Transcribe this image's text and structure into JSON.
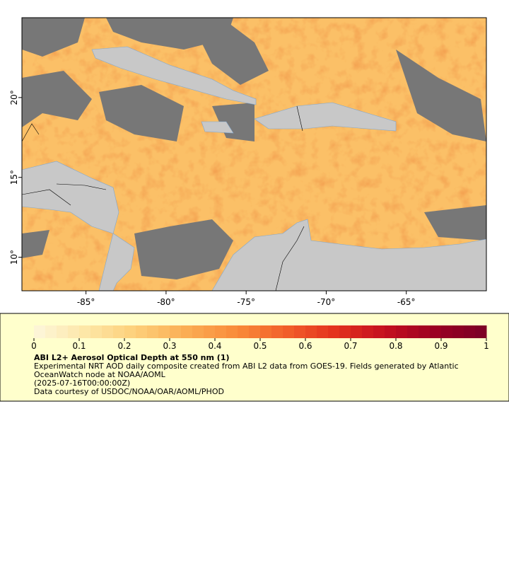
{
  "map": {
    "xlim": [
      -89,
      -60
    ],
    "ylim": [
      7.9,
      25
    ],
    "xticks": [
      {
        "value": -85,
        "label": "-85°"
      },
      {
        "value": -80,
        "label": "-80°"
      },
      {
        "value": -75,
        "label": "-75°"
      },
      {
        "value": -70,
        "label": "-70°"
      },
      {
        "value": -65,
        "label": "-65°"
      }
    ],
    "yticks": [
      {
        "value": 10,
        "label": "10°"
      },
      {
        "value": 15,
        "label": "15°"
      },
      {
        "value": 20,
        "label": "20°"
      }
    ]
  },
  "colorbar": {
    "lim": [
      0,
      1
    ],
    "ticks": [
      0,
      0.1,
      0.2,
      0.3,
      0.4,
      0.5,
      0.6,
      0.7,
      0.8,
      0.9,
      1
    ],
    "colors": [
      "#fdf7dc",
      "#fde7a8",
      "#fdd07a",
      "#fbae55",
      "#f98c3a",
      "#f2602a",
      "#e3311e",
      "#c40f1f",
      "#9a0023",
      "#7a0026"
    ]
  },
  "legend": {
    "title": "ABI L2+ Aerosol Optical Depth at 550 nm (1)",
    "summary": "Experimental NRT AOD daily composite created from ABI L2 data from GOES-19. Fields generated by Atlantic OceanWatch node at NOAA/AOML",
    "time": "(2025-07-16T00:00:00Z)",
    "credit": "Data courtesy of USDOC/NOAA/OAR/AOML/PHOD"
  }
}
